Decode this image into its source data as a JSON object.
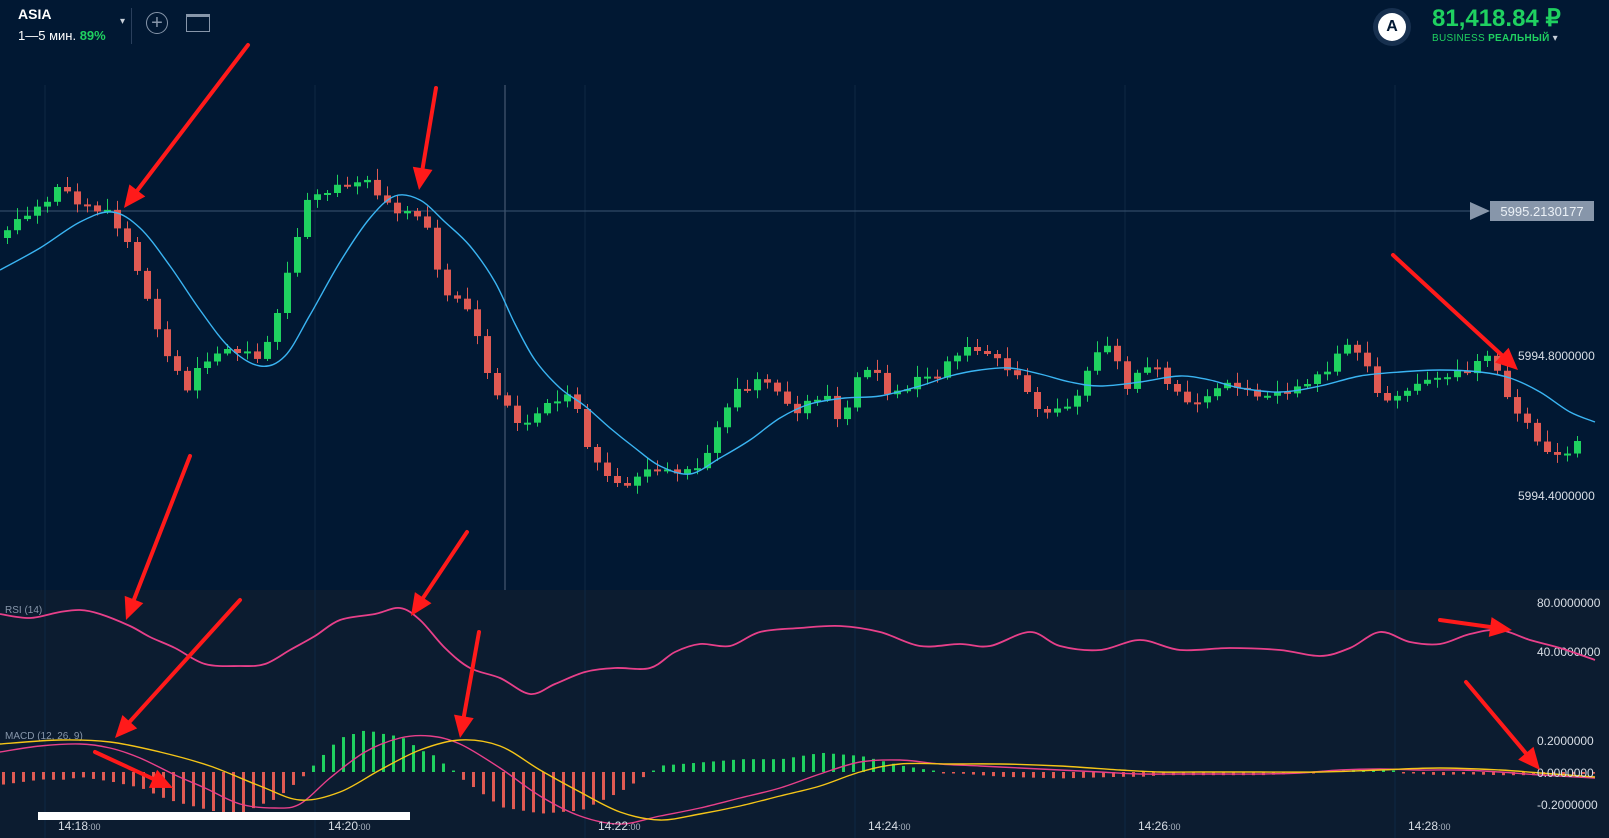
{
  "header": {
    "asset": "ASIA",
    "timeframe": "1—5 мин.",
    "payout": "89%",
    "caret": "▾"
  },
  "account": {
    "avatar_letter": "A",
    "balance": "81,418.84 ₽",
    "type_prefix": "BUSINESS",
    "type_label": "РЕАЛЬНЫЙ",
    "caret": "▾"
  },
  "price_axis": {
    "current_price": "5995.2130177",
    "labels": [
      "5994.8000000",
      "5994.4000000"
    ]
  },
  "rsi": {
    "label": "RSI (14)",
    "levels": [
      "80.0000000",
      "40.0000000"
    ]
  },
  "macd": {
    "label": "MACD (12, 26, 9)",
    "levels": [
      "0.2000000",
      "0.0000000",
      "-0.2000000"
    ]
  },
  "time_axis": [
    {
      "hm": "14:18",
      "s": ":00"
    },
    {
      "hm": "14:20",
      "s": ":00"
    },
    {
      "hm": "14:22",
      "s": ":00"
    },
    {
      "hm": "14:24",
      "s": ":00"
    },
    {
      "hm": "14:26",
      "s": ":00"
    },
    {
      "hm": "14:28",
      "s": ":00"
    }
  ],
  "colors": {
    "background": "#011833",
    "bull": "#1fd160",
    "bear": "#e05a53",
    "ma_line": "#3ab4f2",
    "rsi_line": "#e8408a",
    "macd_line": "#e8408a",
    "signal_line": "#f5c518",
    "arrow": "#ff1a1a"
  },
  "icons": {
    "add": "plus-circle-icon",
    "layout": "layout-icon"
  }
}
